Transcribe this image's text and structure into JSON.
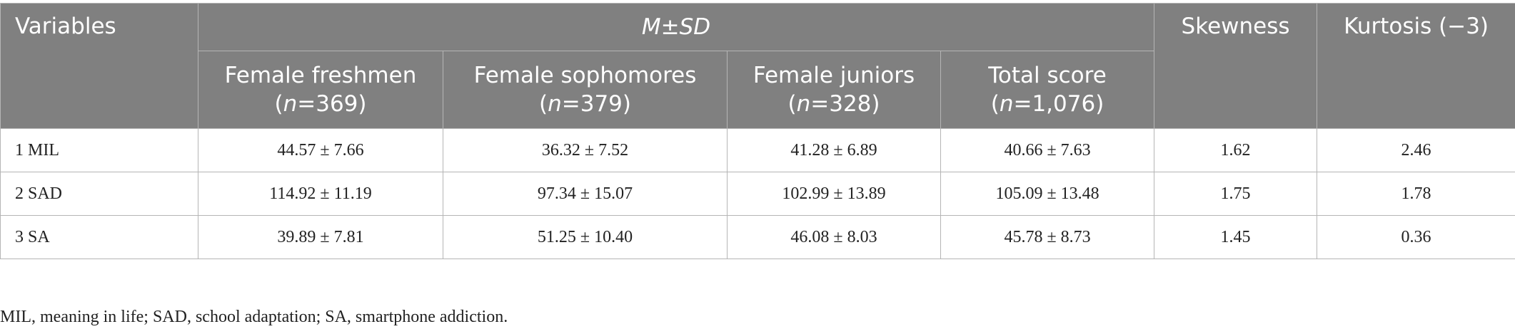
{
  "table": {
    "header": {
      "variables": "Variables",
      "group": [
        "M",
        "±",
        "SD"
      ],
      "columns": [
        {
          "name": "Female freshmen",
          "n": [
            "(",
            "n",
            "=369)"
          ]
        },
        {
          "name": "Female sophomores",
          "n": [
            "(",
            "n",
            "=379)"
          ]
        },
        {
          "name": "Female juniors",
          "n": [
            "(",
            "n",
            "=328)"
          ]
        },
        {
          "name": "Total score",
          "n": [
            "(",
            "n",
            "=1,076)"
          ]
        }
      ],
      "skewness": "Skewness",
      "kurtosis": "Kurtosis (−3)"
    },
    "rows": [
      [
        "1 MIL",
        "44.57 ± 7.66",
        "36.32 ± 7.52",
        "41.28 ± 6.89",
        "40.66 ± 7.63",
        "1.62",
        "2.46"
      ],
      [
        "2 SAD",
        "114.92 ± 11.19",
        "97.34 ± 15.07",
        "102.99 ± 13.89",
        "105.09 ± 13.48",
        "1.75",
        "1.78"
      ],
      [
        "3 SA",
        "39.89 ± 7.81",
        "51.25 ± 10.40",
        "46.08 ± 8.03",
        "45.78 ± 8.73",
        "1.45",
        "0.36"
      ]
    ]
  },
  "footnote": "MIL, meaning in life; SAD, school adaptation; SA, smartphone addiction."
}
